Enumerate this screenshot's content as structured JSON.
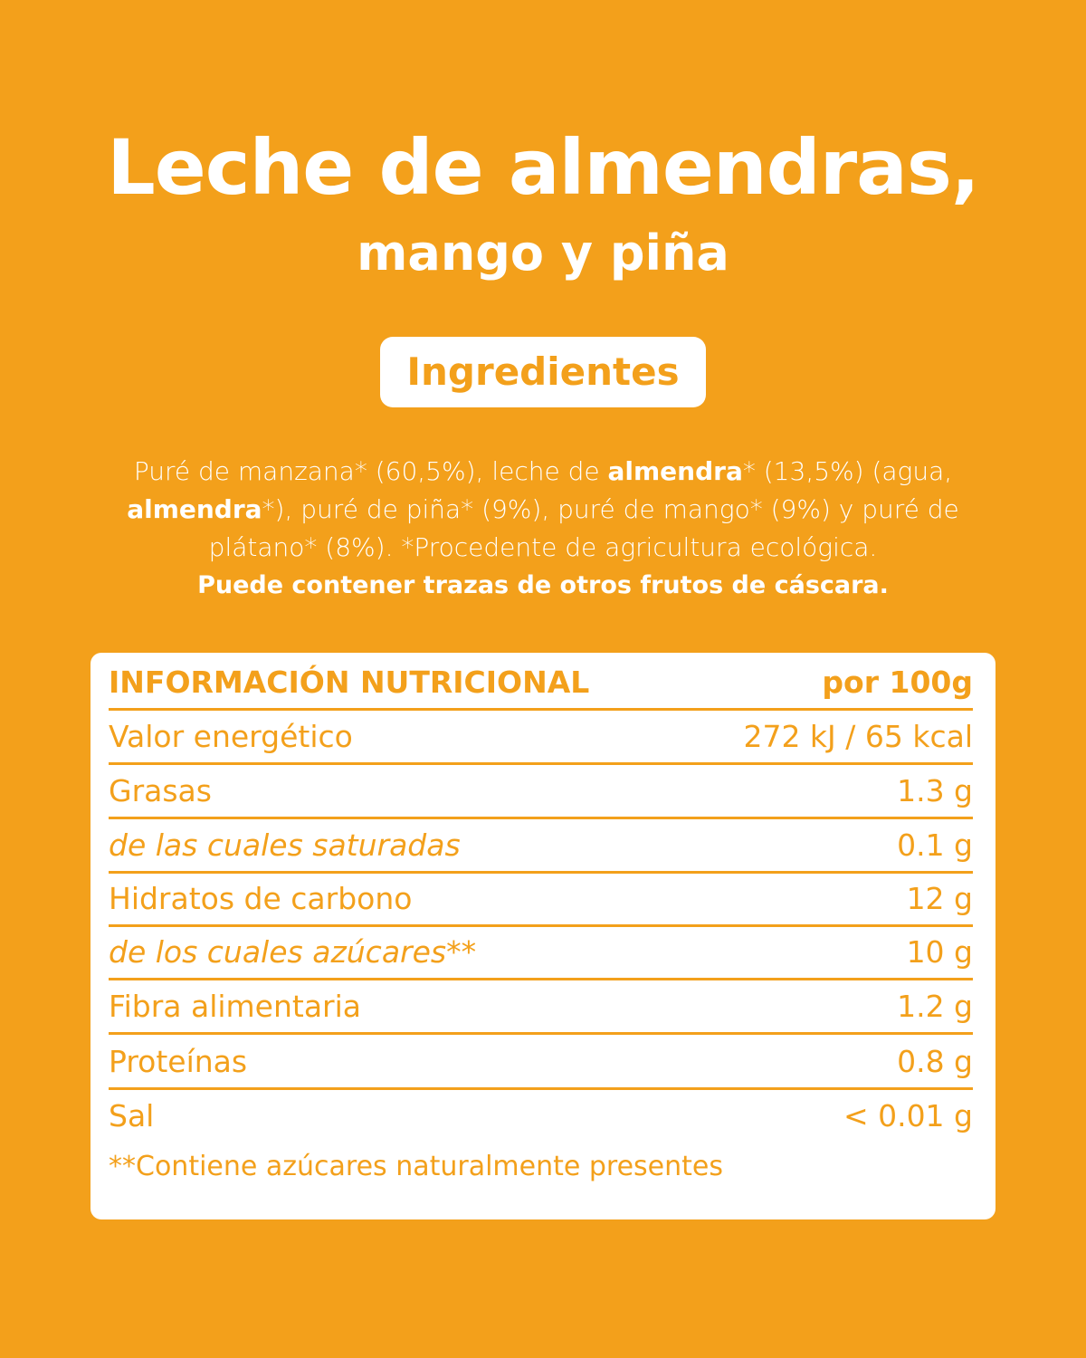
{
  "header": {
    "title": "Leche de almendras,",
    "subtitle": "mango y piña",
    "badge": "Ingredientes"
  },
  "ingredients": {
    "segments": [
      "Puré de manzana* (60,5%), leche de ",
      "almendra",
      "* (13,5%) (agua, ",
      "almendra",
      "*), puré de piña* (9%), puré de mango* (9%) y puré de plátano* (8%). *Procedente de agricultura ecológica."
    ],
    "allergens": "Puede contener trazas de otros frutos de cáscara."
  },
  "table": {
    "header": [
      "INFORMACIÓN NUTRICIONAL",
      "por 100g"
    ],
    "rows": [
      [
        "Valor energético",
        "272 kJ / 65 kcal"
      ],
      [
        "Grasas",
        "1.3 g"
      ],
      [
        "de las cuales saturadas",
        "0.1 g"
      ],
      [
        "Hidratos de carbono",
        "12 g"
      ],
      [
        "de los cuales azúcares**",
        "10 g"
      ],
      [
        "Fibra alimentaria",
        "1.2 g"
      ],
      [
        "Proteínas",
        "0.8 g"
      ],
      [
        "Sal",
        "< 0.01 g"
      ]
    ],
    "footnote": "**Contiene azúcares naturalmente presentes"
  }
}
